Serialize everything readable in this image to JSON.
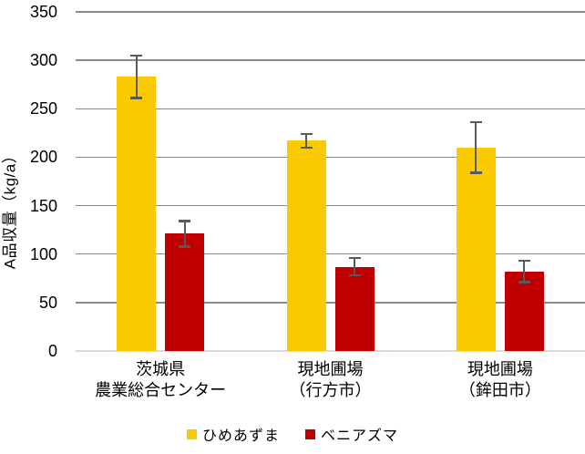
{
  "chart_data": {
    "type": "bar",
    "title": "",
    "ylabel": "A品収量（kg/a）",
    "xlabel": "",
    "ylim": [
      0,
      350
    ],
    "ytick_step": 50,
    "yticks": [
      0,
      50,
      100,
      150,
      200,
      250,
      300,
      350
    ],
    "grid": true,
    "legend_position": "bottom",
    "categories": [
      [
        "茨城県",
        "農業総合センター"
      ],
      [
        "現地圃場",
        "（行方市）"
      ],
      [
        "現地圃場",
        "（鉾田市）"
      ]
    ],
    "series": [
      {
        "name": "ひめあずま",
        "color": "#fac900",
        "values": [
          283,
          217,
          210
        ],
        "errors": [
          22,
          7,
          26
        ]
      },
      {
        "name": "ベニアズマ",
        "color": "#c00000",
        "values": [
          121,
          87,
          82
        ],
        "errors": [
          13,
          9,
          11
        ]
      }
    ],
    "colors": {
      "error_bar": "#595959",
      "gridline": "#8a8a8a",
      "baseline": "#d9d9d9",
      "text": "#000000",
      "background": "#ffffff"
    }
  }
}
